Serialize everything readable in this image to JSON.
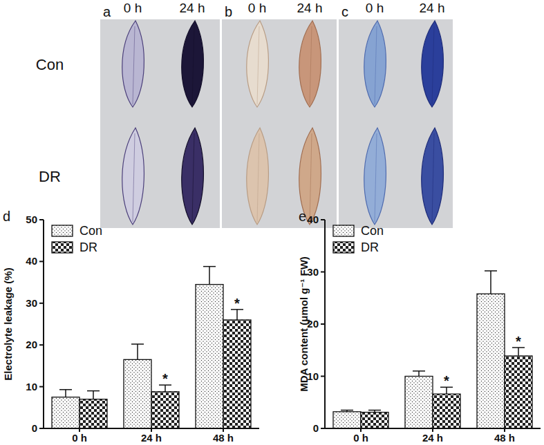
{
  "photo_panels": {
    "labels": [
      "a",
      "b",
      "c"
    ],
    "columns": [
      "0 h",
      "24 h"
    ],
    "rows": [
      "Con",
      "DR"
    ]
  },
  "chart_data": [
    {
      "type": "bar",
      "title": "d",
      "y_label": "Electrolyte leakage (%)",
      "categories": [
        "0 h",
        "24 h",
        "48 h"
      ],
      "series": [
        {
          "name": "Con",
          "color": "#333333",
          "marker": "dots",
          "values": [
            7.5,
            16.5,
            34.5
          ],
          "errors": [
            1.8,
            3.7,
            4.3
          ],
          "annotations": [
            null,
            null,
            null
          ]
        },
        {
          "name": "DR",
          "color": "#222222",
          "marker": "checks",
          "values": [
            7.0,
            8.8,
            26.0
          ],
          "errors": [
            2.0,
            1.6,
            2.5
          ],
          "annotations": [
            null,
            "*",
            "*"
          ]
        }
      ],
      "ylim": [
        0,
        50
      ],
      "yticks": [
        0,
        10,
        20,
        30,
        40,
        50
      ],
      "grid": false,
      "legend": "upper left"
    },
    {
      "type": "bar",
      "title": "e",
      "y_label": "MDA content (μmol g⁻¹ FW)",
      "categories": [
        "0 h",
        "24 h",
        "48 h"
      ],
      "series": [
        {
          "name": "Con",
          "color": "#333333",
          "marker": "dots",
          "values": [
            3.2,
            10.0,
            25.8
          ],
          "errors": [
            0.3,
            1.0,
            4.4
          ],
          "annotations": [
            null,
            null,
            null
          ]
        },
        {
          "name": "DR",
          "color": "#222222",
          "marker": "checks",
          "values": [
            3.1,
            6.6,
            13.9
          ],
          "errors": [
            0.4,
            1.3,
            1.6
          ],
          "annotations": [
            null,
            "*",
            "*"
          ]
        }
      ],
      "ylim": [
        0,
        40
      ],
      "yticks": [
        0,
        10,
        20,
        30,
        40
      ],
      "grid": false,
      "legend": "upper left"
    }
  ]
}
